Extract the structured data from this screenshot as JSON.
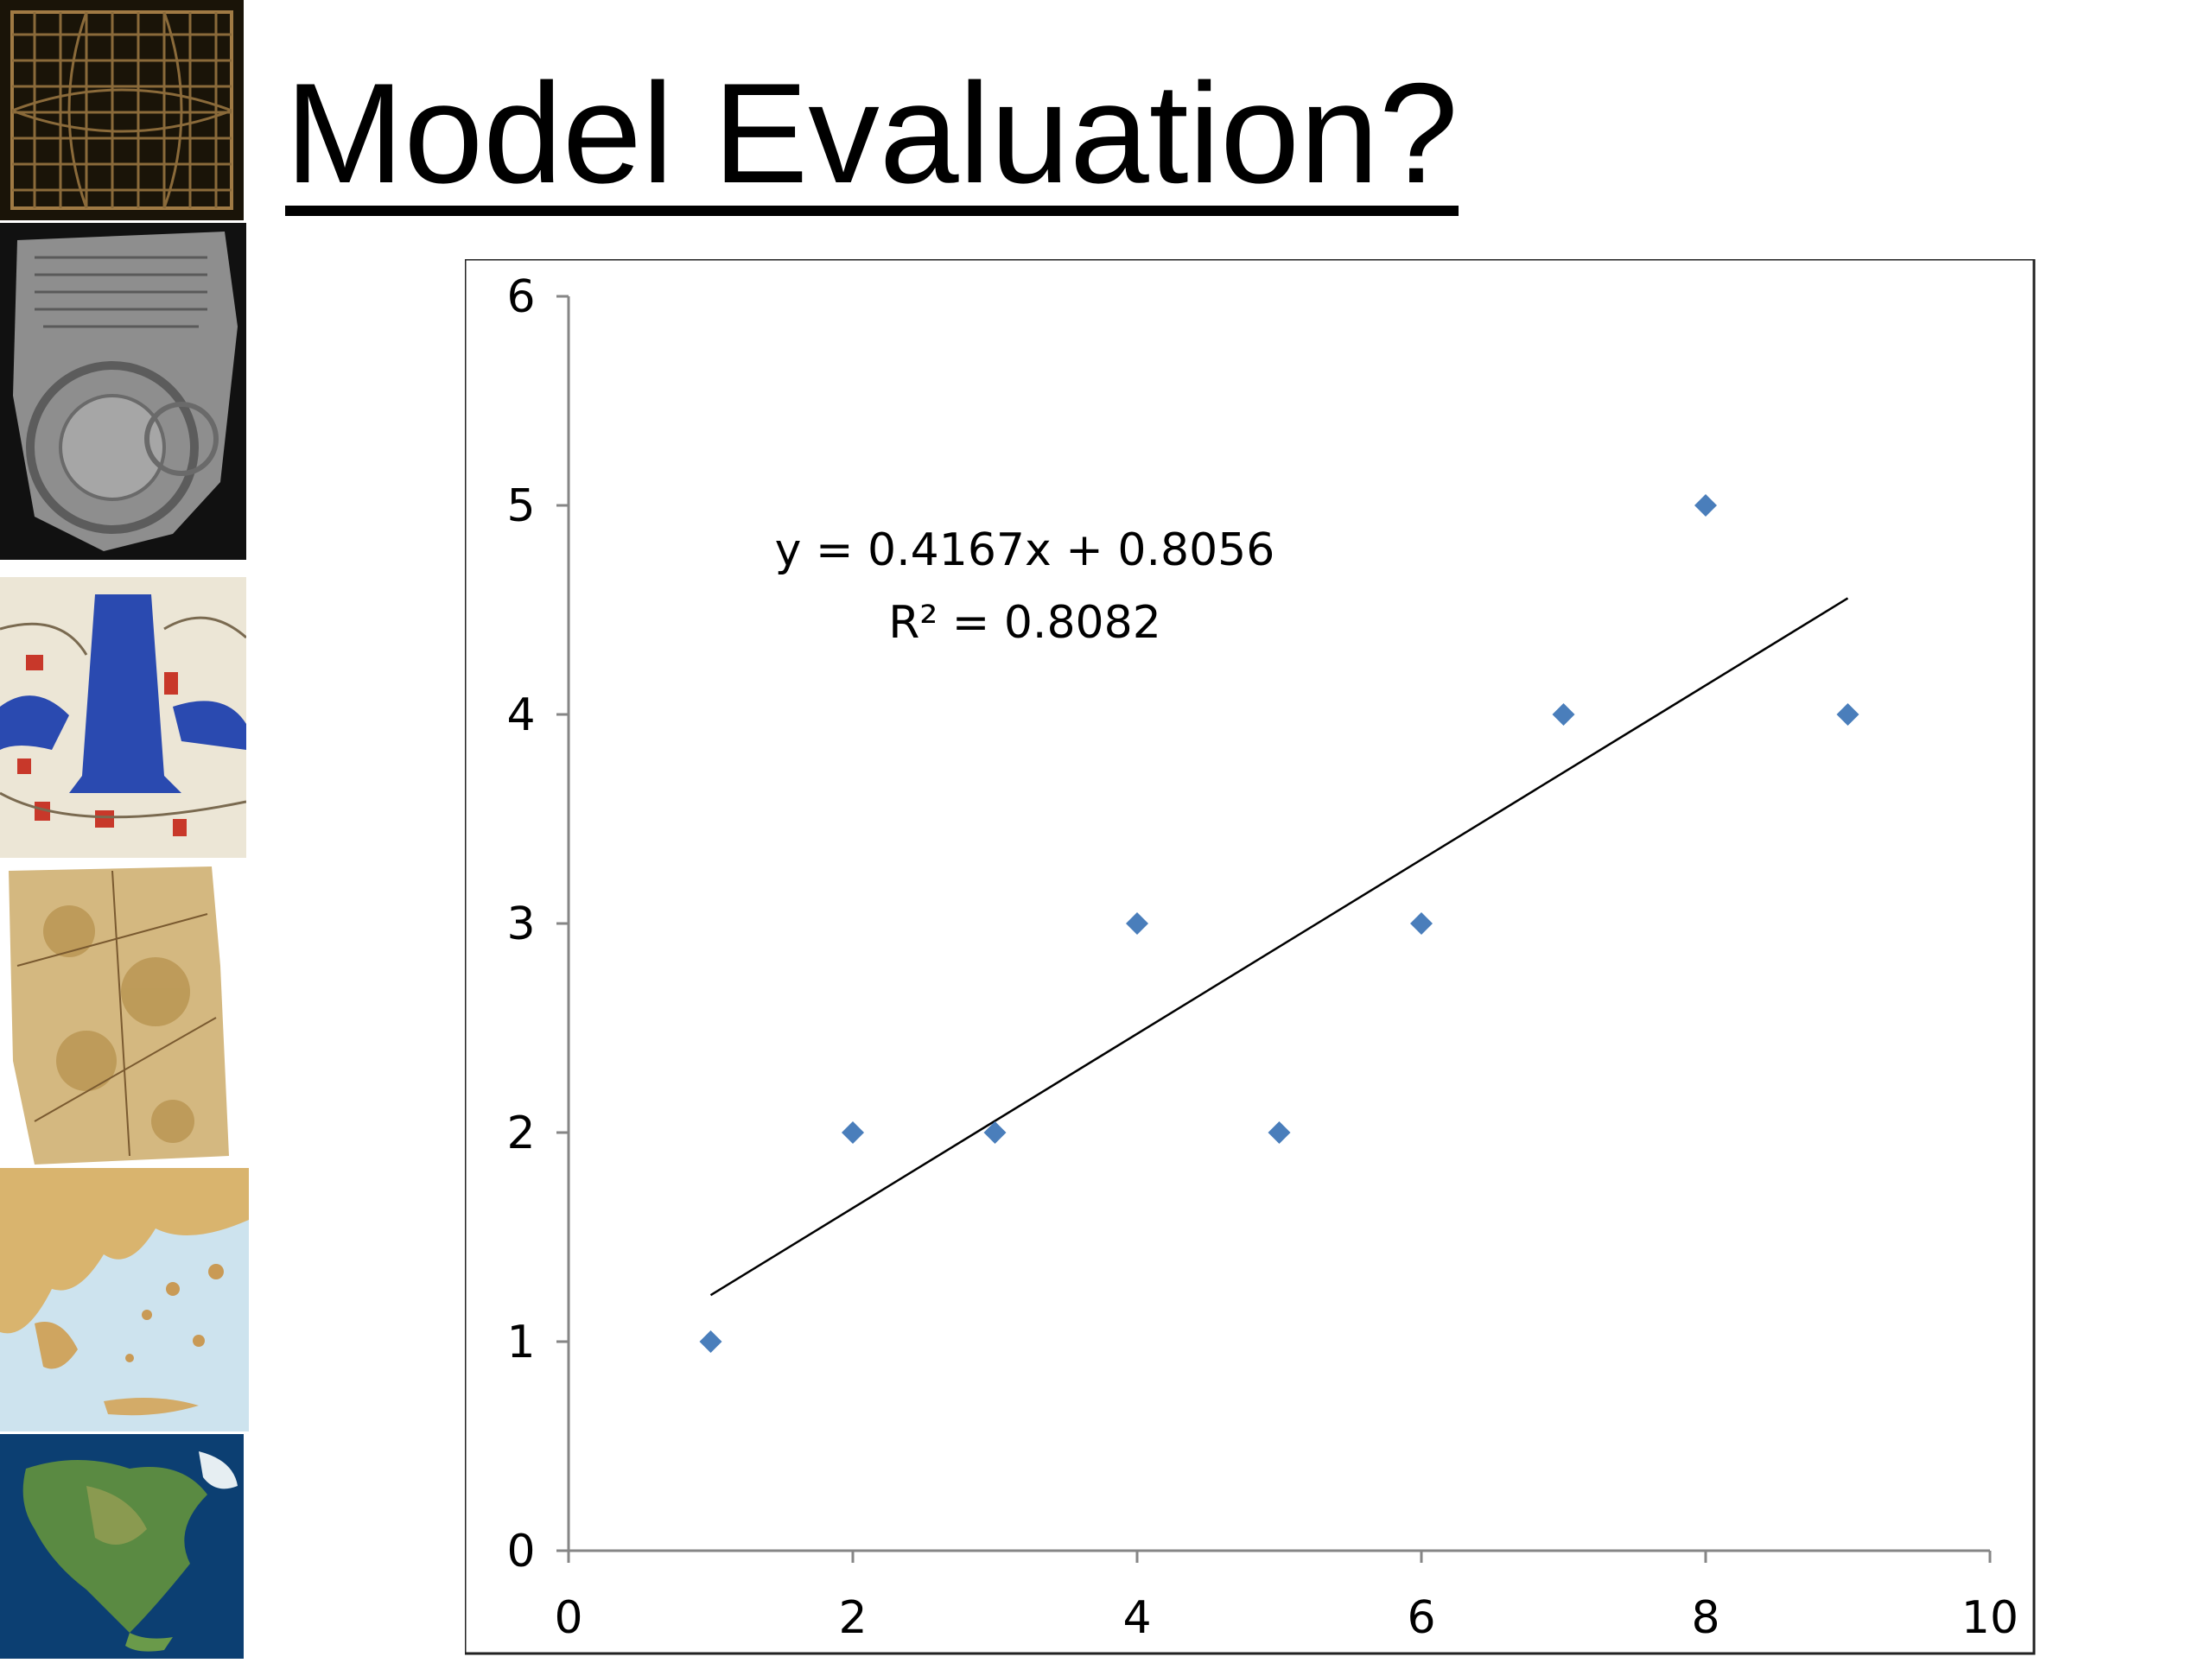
{
  "slide": {
    "title": "Model Evaluation?"
  },
  "thumbnails": [
    {
      "name": "grid-map-image",
      "colors": [
        "#1a1408",
        "#8a6a3a"
      ]
    },
    {
      "name": "stone-tablet-map-image",
      "colors": [
        "#1c1c1c",
        "#9a9a9a"
      ]
    },
    {
      "name": "illustrated-cosmology-map-image",
      "colors": [
        "#e8e4d8",
        "#2a4ab0"
      ]
    },
    {
      "name": "parchment-map-image",
      "colors": [
        "#d8c08a",
        "#a08040"
      ]
    },
    {
      "name": "relief-map-greece-image",
      "colors": [
        "#cfe4ee",
        "#d8b070"
      ]
    },
    {
      "name": "north-america-globe-image",
      "colors": [
        "#0a3a6a",
        "#5a8a40"
      ]
    }
  ],
  "chart_data": {
    "type": "scatter",
    "x": [
      1,
      2,
      3,
      4,
      5,
      6,
      7,
      8,
      9
    ],
    "y": [
      1,
      2,
      2,
      3,
      2,
      3,
      4,
      5,
      4
    ],
    "xlim": [
      0,
      10
    ],
    "ylim": [
      0,
      6
    ],
    "x_ticks": [
      0,
      2,
      4,
      6,
      8,
      10
    ],
    "y_ticks": [
      0,
      1,
      2,
      3,
      4,
      5,
      6
    ],
    "trendline": {
      "slope": 0.4167,
      "intercept": 0.8056,
      "x_range": [
        1,
        9
      ],
      "equation_label": "y = 0.4167x + 0.8056",
      "r2_label": "R² = 0.8082"
    },
    "marker_color": "#4a7ebb",
    "line_color": "#000000",
    "grid": false,
    "legend": false
  }
}
